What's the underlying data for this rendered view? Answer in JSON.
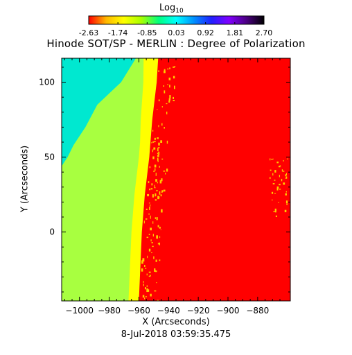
{
  "chart_data": {
    "type": "heatmap",
    "title": "Hinode SOT/SP - MERLIN : Degree of Polarization",
    "xlabel": "X (Arcseconds)",
    "ylabel": "Y (Arcseconds)",
    "xlim": [
      -1012,
      -858
    ],
    "ylim": [
      -46,
      116
    ],
    "x_ticks": [
      -1000,
      -980,
      -960,
      -940,
      -920,
      -900,
      -880
    ],
    "y_ticks": [
      0,
      50,
      100
    ],
    "limb_x": [
      [
        -46,
        -960
      ],
      [
        0,
        -958
      ],
      [
        25,
        -956
      ],
      [
        50,
        -953
      ],
      [
        75,
        -951
      ],
      [
        100,
        -948
      ],
      [
        116,
        -947
      ]
    ],
    "colorbar": {
      "label_main": "Log",
      "label_sub": "10",
      "ticks": [
        "-2.63",
        "-1.74",
        "-0.85",
        "0.03",
        "0.92",
        "1.81",
        "2.70"
      ],
      "range": [
        -2.63,
        2.7
      ],
      "colormap": [
        "#ff0000",
        "#ffb800",
        "#ffff00",
        "#a8ff00",
        "#00ff80",
        "#00ffff",
        "#0090ff",
        "#2020ff",
        "#8000ff",
        "#4b0082",
        "#000000"
      ]
    },
    "regions": {
      "off_disk_near_limb_color": "#ffff00",
      "off_disk_mid_color": "#a8ff40",
      "off_disk_high_color": "#00e8d0",
      "on_disk_color": "#ff0000",
      "plage_color": "#ffcc00"
    },
    "timestamp": "8-Jul-2018 03:59:35.475"
  }
}
